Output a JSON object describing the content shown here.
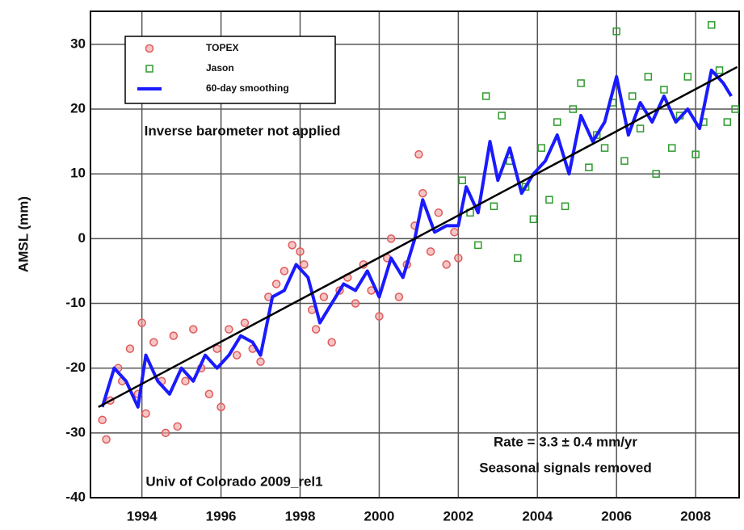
{
  "chart_data": {
    "type": "scatter",
    "y_label": "AMSL   (mm)",
    "annotations": [
      "Inverse barometer not applied",
      "Rate = 3.3 ± 0.4 mm/yr",
      "Seasonal signals removed",
      "Univ of Colorado 2009_rel1"
    ],
    "xlim": [
      1992.7,
      2009.1
    ],
    "ylim": [
      -40,
      35.1
    ],
    "xticks": [
      1994,
      1996,
      1998,
      2000,
      2002,
      2004,
      2006,
      2008
    ],
    "yticks": [
      -40,
      -30,
      -20,
      -10,
      0,
      10,
      20,
      30
    ],
    "grid": true,
    "legend": "upper left",
    "series": [
      {
        "name": "TOPEX",
        "kind": "scatter",
        "marker": "circle",
        "color": "#e05a5a",
        "x": [
          1993.0,
          1993.1,
          1993.2,
          1993.4,
          1993.5,
          1993.7,
          1993.9,
          1994.0,
          1994.1,
          1994.3,
          1994.5,
          1994.6,
          1994.8,
          1994.9,
          1995.1,
          1995.3,
          1995.5,
          1995.7,
          1995.9,
          1996.0,
          1996.2,
          1996.4,
          1996.6,
          1996.8,
          1997.0,
          1997.2,
          1997.4,
          1997.6,
          1997.8,
          1998.0,
          1998.1,
          1998.3,
          1998.4,
          1998.6,
          1998.8,
          1999.0,
          1999.2,
          1999.4,
          1999.6,
          1999.8,
          2000.0,
          2000.2,
          2000.3,
          2000.5,
          2000.7,
          2000.9,
          2001.0,
          2001.1,
          2001.3,
          2001.5,
          2001.7,
          2001.9,
          2002.0
        ],
        "values": [
          -28,
          -31,
          -25,
          -20,
          -22,
          -17,
          -24,
          -13,
          -27,
          -16,
          -22,
          -30,
          -15,
          -29,
          -22,
          -14,
          -20,
          -24,
          -17,
          -26,
          -14,
          -18,
          -13,
          -17,
          -19,
          -9,
          -7,
          -5,
          -1,
          -2,
          -4,
          -11,
          -14,
          -9,
          -16,
          -8,
          -6,
          -10,
          -4,
          -8,
          -12,
          -3,
          0,
          -9,
          -4,
          2,
          13,
          7,
          -2,
          4,
          -4,
          1,
          -3
        ]
      },
      {
        "name": "Jason",
        "kind": "scatter",
        "marker": "square",
        "color": "#2e9a2e",
        "x": [
          2002.1,
          2002.3,
          2002.5,
          2002.7,
          2002.9,
          2003.1,
          2003.3,
          2003.5,
          2003.7,
          2003.9,
          2004.1,
          2004.3,
          2004.5,
          2004.7,
          2004.9,
          2005.1,
          2005.3,
          2005.5,
          2005.7,
          2005.9,
          2006.0,
          2006.2,
          2006.4,
          2006.6,
          2006.8,
          2007.0,
          2007.2,
          2007.4,
          2007.6,
          2007.8,
          2008.0,
          2008.2,
          2008.4,
          2008.6,
          2008.8,
          2009.0
        ],
        "values": [
          9,
          4,
          -1,
          22,
          5,
          19,
          12,
          -3,
          8,
          3,
          14,
          6,
          18,
          5,
          20,
          24,
          11,
          16,
          14,
          21,
          32,
          12,
          22,
          17,
          25,
          10,
          23,
          14,
          19,
          25,
          13,
          18,
          33,
          26,
          18,
          20
        ]
      },
      {
        "name": "60-day smoothing",
        "kind": "line",
        "width": 4,
        "color": "#1a1aff",
        "x": [
          1993.0,
          1993.3,
          1993.6,
          1993.9,
          1994.1,
          1994.4,
          1994.7,
          1995.0,
          1995.3,
          1995.6,
          1995.9,
          1996.2,
          1996.5,
          1996.8,
          1997.0,
          1997.3,
          1997.6,
          1997.9,
          1998.2,
          1998.5,
          1998.8,
          1999.1,
          1999.4,
          1999.7,
          2000.0,
          2000.3,
          2000.6,
          2000.9,
          2001.1,
          2001.4,
          2001.7,
          2002.0,
          2002.2,
          2002.5,
          2002.8,
          2003.0,
          2003.3,
          2003.6,
          2003.9,
          2004.2,
          2004.5,
          2004.8,
          2005.1,
          2005.4,
          2005.7,
          2006.0,
          2006.3,
          2006.6,
          2006.9,
          2007.2,
          2007.5,
          2007.8,
          2008.1,
          2008.4,
          2008.7,
          2008.9
        ],
        "values": [
          -26,
          -20,
          -22,
          -26,
          -18,
          -22,
          -24,
          -20,
          -22,
          -18,
          -20,
          -18,
          -15,
          -16,
          -18,
          -9,
          -8,
          -4,
          -6,
          -13,
          -10,
          -7,
          -8,
          -5,
          -9,
          -3,
          -6,
          0,
          6,
          1,
          2,
          2,
          8,
          4,
          15,
          9,
          14,
          7,
          10,
          12,
          16,
          10,
          19,
          15,
          18,
          25,
          16,
          21,
          18,
          22,
          18,
          20,
          17,
          26,
          24,
          22
        ]
      },
      {
        "kind": "line",
        "width": 2.5,
        "color": "#000000",
        "x": [
          1992.9,
          2009.05
        ],
        "values": [
          -26,
          26.5
        ]
      }
    ]
  }
}
